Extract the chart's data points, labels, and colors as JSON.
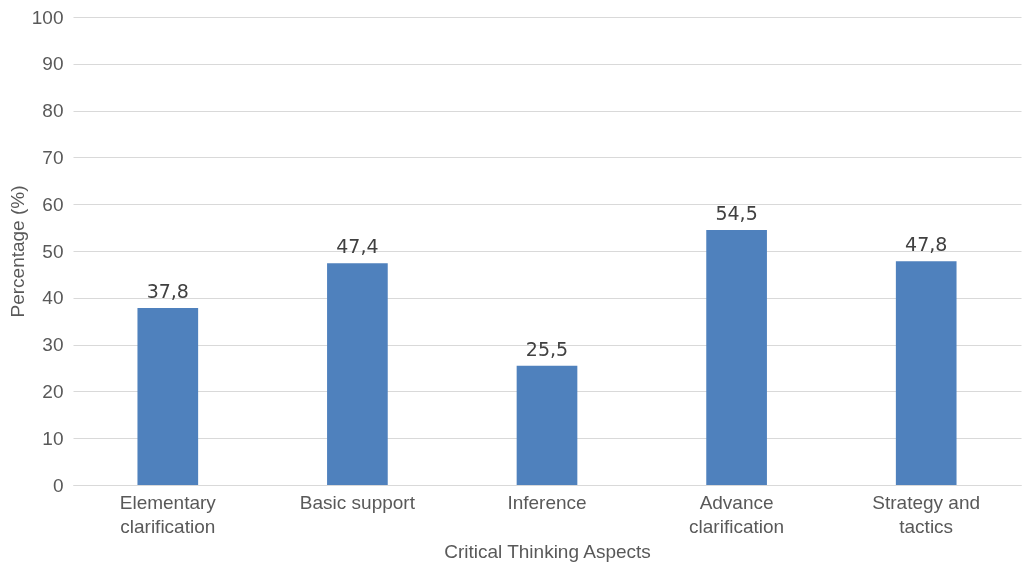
{
  "chart_data": {
    "type": "bar",
    "xlabel": "Critical Thinking Aspects",
    "ylabel": "Percentage (%)",
    "categories": [
      "Elementary\nclarification",
      "Basic support",
      "Inference",
      "Advance\nclarification",
      "Strategy and\ntactics"
    ],
    "values": [
      37.8,
      47.4,
      25.5,
      54.5,
      47.8
    ],
    "value_labels": [
      "37,8",
      "47,4",
      "25,5",
      "54,5",
      "47,8"
    ],
    "color": "#4f81bd",
    "ylim": [
      0,
      100
    ],
    "yticks": [
      0,
      10,
      20,
      30,
      40,
      50,
      60,
      70,
      80,
      90,
      100
    ],
    "grid": "y"
  }
}
